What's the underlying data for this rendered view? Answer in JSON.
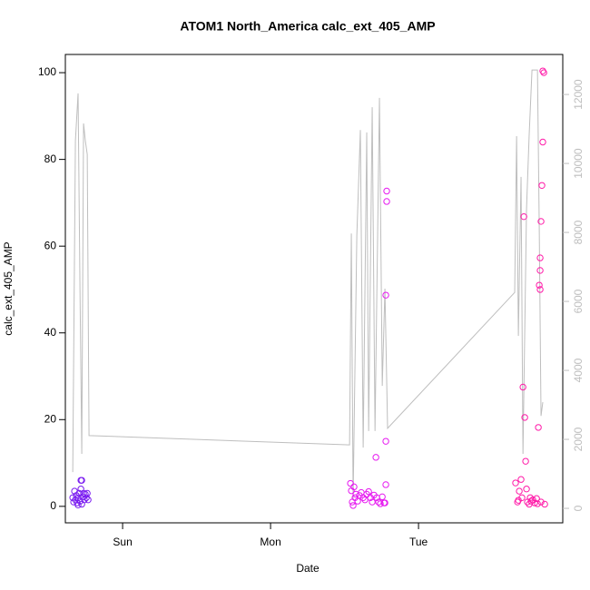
{
  "chart_data": {
    "type": "scatter",
    "title": "ATOM1 North_America calc_ext_405_AMP",
    "xlabel": "Date",
    "ylabel": "calc_ext_405_AMP",
    "xlim": [
      -0.387,
      2.975
    ],
    "xticks": [
      {
        "value": 0,
        "label": "Sun"
      },
      {
        "value": 1,
        "label": "Mon"
      },
      {
        "value": 2,
        "label": "Tue"
      }
    ],
    "ylim": [
      -3.8,
      104.2
    ],
    "yticks": [
      0,
      20,
      40,
      60,
      80,
      100
    ],
    "y2lim": [
      -420,
      13160
    ],
    "y2ticks": [
      0,
      2000,
      4000,
      6000,
      8000,
      10000,
      12000
    ],
    "y2_color": "#bebebe",
    "series": [
      {
        "type": "line",
        "axis": "y2",
        "color": "#bebebe",
        "x": [
          -0.337,
          -0.319,
          -0.301,
          -0.288,
          -0.276,
          -0.264,
          -0.252,
          -0.239,
          -0.227,
          1.534,
          1.546,
          1.558,
          1.583,
          1.607,
          1.626,
          1.65,
          1.663,
          1.687,
          1.706,
          1.736,
          1.755,
          1.773,
          1.791,
          2.65,
          2.663,
          2.675,
          2.693,
          2.706,
          2.73,
          2.748,
          2.767,
          2.804,
          2.816,
          2.828,
          2.84
        ],
        "values": [
          1050,
          10660,
          12030,
          6320,
          1580,
          11160,
          10660,
          10260,
          2110,
          1840,
          7970,
          260,
          7900,
          10970,
          1760,
          10900,
          2240,
          11630,
          2240,
          11900,
          3550,
          6370,
          2320,
          6260,
          10790,
          5000,
          9610,
          1580,
          8680,
          10840,
          12710,
          12710,
          8160,
          2680,
          3080
        ]
      },
      {
        "type": "scatter",
        "color": "#7a1cf0",
        "x": [
          -0.337,
          -0.331,
          -0.325,
          -0.319,
          -0.313,
          -0.307,
          -0.301,
          -0.294,
          -0.288,
          -0.282,
          -0.276,
          -0.282,
          -0.276,
          -0.27,
          -0.264,
          -0.258,
          -0.252,
          -0.245,
          -0.239,
          -0.233,
          -0.301
        ],
        "values": [
          2,
          1,
          3.5,
          1.5,
          2.5,
          0.8,
          2,
          3,
          1.2,
          6,
          6,
          4,
          0.5,
          2.2,
          3,
          1.5,
          2.8,
          2,
          3,
          1.5,
          0.3
        ]
      },
      {
        "type": "scatter",
        "color": "#e619f0",
        "x": [
          1.54,
          1.546,
          1.552,
          1.558,
          1.564,
          1.571,
          1.577,
          1.589,
          1.601,
          1.613,
          1.626,
          1.638,
          1.65,
          1.663,
          1.675,
          1.687,
          1.699,
          1.712,
          1.718,
          1.73,
          1.742,
          1.755,
          1.767,
          1.779,
          1.779,
          1.779,
          1.785,
          1.785,
          1.773
        ],
        "values": [
          5.3,
          3.6,
          1,
          0.2,
          4.5,
          2,
          2.8,
          1.2,
          2.5,
          3.2,
          2,
          1.5,
          2.8,
          3.4,
          2,
          1,
          2.6,
          11.3,
          2,
          1,
          0.6,
          2.2,
          0.8,
          5,
          15,
          48.7,
          70.3,
          72.7,
          0.8
        ]
      },
      {
        "type": "scatter",
        "color": "#ff1aa8",
        "x": [
          2.656,
          2.669,
          2.681,
          2.693,
          2.699,
          2.706,
          2.712,
          2.718,
          2.724,
          2.73,
          2.736,
          2.748,
          2.761,
          2.773,
          2.785,
          2.798,
          2.81,
          2.816,
          2.822,
          2.822,
          2.822,
          2.828,
          2.834,
          2.84,
          2.84,
          2.847,
          2.828,
          2.853,
          2.804,
          2.755,
          2.675
        ],
        "values": [
          5.4,
          1,
          3.5,
          6.2,
          2,
          27.5,
          66.8,
          20.5,
          10.4,
          4,
          1,
          0.5,
          1.2,
          1.5,
          0.8,
          1.8,
          18.2,
          51,
          50,
          57.3,
          54.4,
          65.7,
          74,
          84,
          100.4,
          100,
          1,
          0.5,
          0.6,
          2,
          1.4
        ]
      }
    ]
  }
}
